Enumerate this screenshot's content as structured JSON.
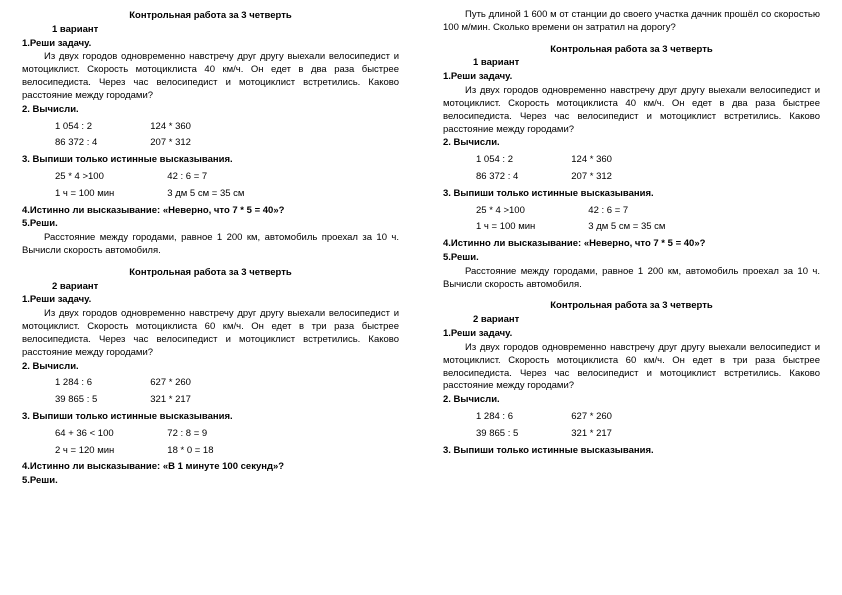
{
  "blocks": {
    "title": "Контрольная работа за 3 четверть",
    "v1_label": "1 вариант",
    "v2_label": "2 вариант",
    "t1_head": "1.Реши задачу.",
    "t1_v1_text": "Из двух городов одновременно навстречу друг другу выехали велосипедист и мотоциклист. Скорость мотоциклиста 40 км/ч. Он едет в два раза быстрее велосипедиста. Через час велосипедист и мотоциклист встретились. Каково расстояние между городами?",
    "t1_v2_text": "Из двух городов одновременно навстречу друг другу выехали велосипедист и мотоциклист. Скорость мотоциклиста 60 км/ч. Он едет в три раза быстрее велосипедиста. Через час велосипедист и мотоциклист встретились. Каково расстояние между городами?",
    "t2_head": "2. Вычисли.",
    "t2_v1_a1": "1 054 : 2",
    "t2_v1_b1": "124 * 360",
    "t2_v1_a2": "86 372 : 4",
    "t2_v1_b2": "207 * 312",
    "t2_v2_a1": "1 284 : 6",
    "t2_v2_b1": "627 * 260",
    "t2_v2_a2": "39 865 : 5",
    "t2_v2_b2": "321 * 217",
    "t3_head": "3. Выпиши только истинные высказывания.",
    "t3_v1_a1": "25 * 4 >100",
    "t3_v1_b1": "42 : 6 = 7",
    "t3_v1_a2": "1 ч = 100 мин",
    "t3_v1_b2": "3 дм 5 см = 35 см",
    "t3_v2_a1": "64 + 36  <  100",
    "t3_v2_b1": "72 : 8   =  9",
    "t3_v2_a2": "2 ч = 120 мин",
    "t3_v2_b2": "18 * 0 = 18",
    "t4_v1": "4.Истинно ли высказывание: «Неверно, что 7 * 5 = 40»?",
    "t4_v2": "4.Истинно ли высказывание: «В 1 минуте 100 секунд»?",
    "t5_head": "5.Реши.",
    "t5_v1_text": "Расстояние между городами, равное 1 200 км, автомобиль проехал за 10 ч. Вычисли скорость автомобиля.",
    "t5_v2_text": "Путь длиной 1 600 м от станции до своего участка дачник прошёл со скоростью 100 м/мин. Сколько времени он затратил на дорогу?"
  }
}
